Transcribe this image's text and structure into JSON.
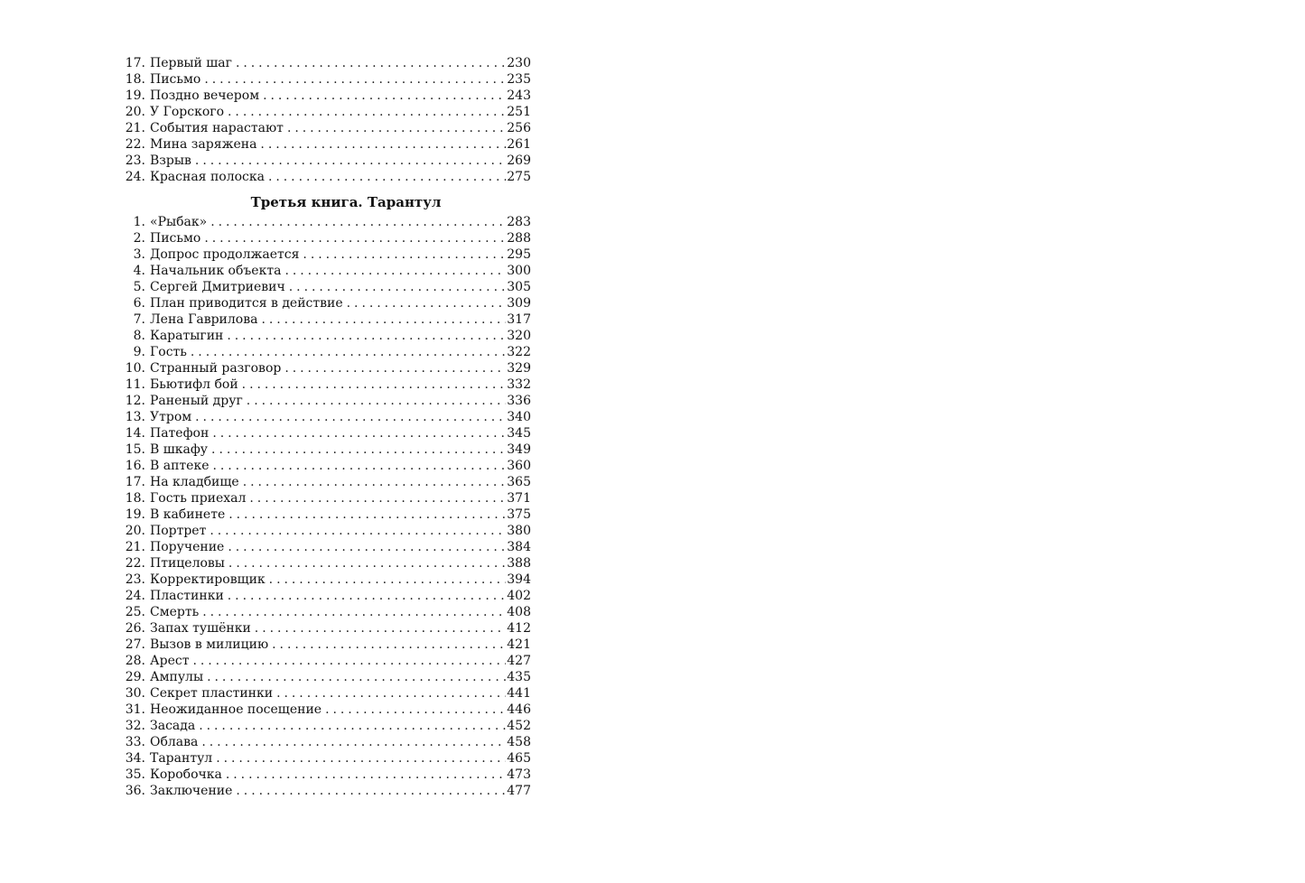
{
  "part_two_entries": [
    {
      "num": "17.",
      "title": "Первый шаг",
      "page": "230"
    },
    {
      "num": "18.",
      "title": "Письмо",
      "page": "235"
    },
    {
      "num": "19.",
      "title": "Поздно вечером",
      "page": "243"
    },
    {
      "num": "20.",
      "title": "У Горского",
      "page": "251"
    },
    {
      "num": "21.",
      "title": "События нарастают",
      "page": "256"
    },
    {
      "num": "22.",
      "title": "Мина заряжена",
      "page": "261"
    },
    {
      "num": "23.",
      "title": "Взрыв",
      "page": "269"
    },
    {
      "num": "24.",
      "title": "Красная полоска",
      "page": "275"
    }
  ],
  "part_three": {
    "heading": "Третья книга. Тарантул",
    "entries": [
      {
        "num": "1.",
        "title": "«Рыбак»",
        "page": "283"
      },
      {
        "num": "2.",
        "title": "Письмо",
        "page": "288"
      },
      {
        "num": "3.",
        "title": "Допрос продолжается",
        "page": "295"
      },
      {
        "num": "4.",
        "title": "Начальник объекта",
        "page": "300"
      },
      {
        "num": "5.",
        "title": "Сергей Дмитриевич",
        "page": "305"
      },
      {
        "num": "6.",
        "title": "План приводится в действие",
        "page": "309"
      },
      {
        "num": "7.",
        "title": "Лена Гаврилова",
        "page": "317"
      },
      {
        "num": "8.",
        "title": "Каратыгин",
        "page": "320"
      },
      {
        "num": "9.",
        "title": "Гость",
        "page": "322"
      },
      {
        "num": "10.",
        "title": "Странный разговор",
        "page": "329"
      },
      {
        "num": "11.",
        "title": "Бьютифл бой",
        "page": "332"
      },
      {
        "num": "12.",
        "title": "Раненый друг",
        "page": "336"
      },
      {
        "num": "13.",
        "title": "Утром",
        "page": "340"
      },
      {
        "num": "14.",
        "title": "Патефон",
        "page": "345"
      },
      {
        "num": "15.",
        "title": "В шкафу",
        "page": "349"
      },
      {
        "num": "16.",
        "title": "В аптеке",
        "page": "360"
      },
      {
        "num": "17.",
        "title": "На кладбище",
        "page": "365"
      },
      {
        "num": "18.",
        "title": "Гость приехал",
        "page": "371"
      },
      {
        "num": "19.",
        "title": "В кабинете",
        "page": "375"
      },
      {
        "num": "20.",
        "title": "Портрет",
        "page": "380"
      },
      {
        "num": "21.",
        "title": "Поручение",
        "page": "384"
      },
      {
        "num": "22.",
        "title": "Птицеловы",
        "page": "388"
      },
      {
        "num": "23.",
        "title": "Корректировщик",
        "page": "394"
      },
      {
        "num": "24.",
        "title": "Пластинки",
        "page": "402"
      },
      {
        "num": "25.",
        "title": "Смерть",
        "page": "408"
      },
      {
        "num": "26.",
        "title": "Запах тушёнки",
        "page": "412"
      },
      {
        "num": "27.",
        "title": "Вызов в милицию",
        "page": "421"
      },
      {
        "num": "28.",
        "title": "Арест",
        "page": "427"
      },
      {
        "num": "29.",
        "title": "Ампулы",
        "page": "435"
      },
      {
        "num": "30.",
        "title": "Секрет пластинки",
        "page": "441"
      },
      {
        "num": "31.",
        "title": "Неожиданное посещение",
        "page": "446"
      },
      {
        "num": "32.",
        "title": "Засада",
        "page": "452"
      },
      {
        "num": "33.",
        "title": "Облава",
        "page": "458"
      },
      {
        "num": "34.",
        "title": "Тарантул",
        "page": "465"
      },
      {
        "num": "35.",
        "title": "Коробочка",
        "page": "473"
      },
      {
        "num": "36.",
        "title": "Заключение",
        "page": "477"
      }
    ]
  }
}
